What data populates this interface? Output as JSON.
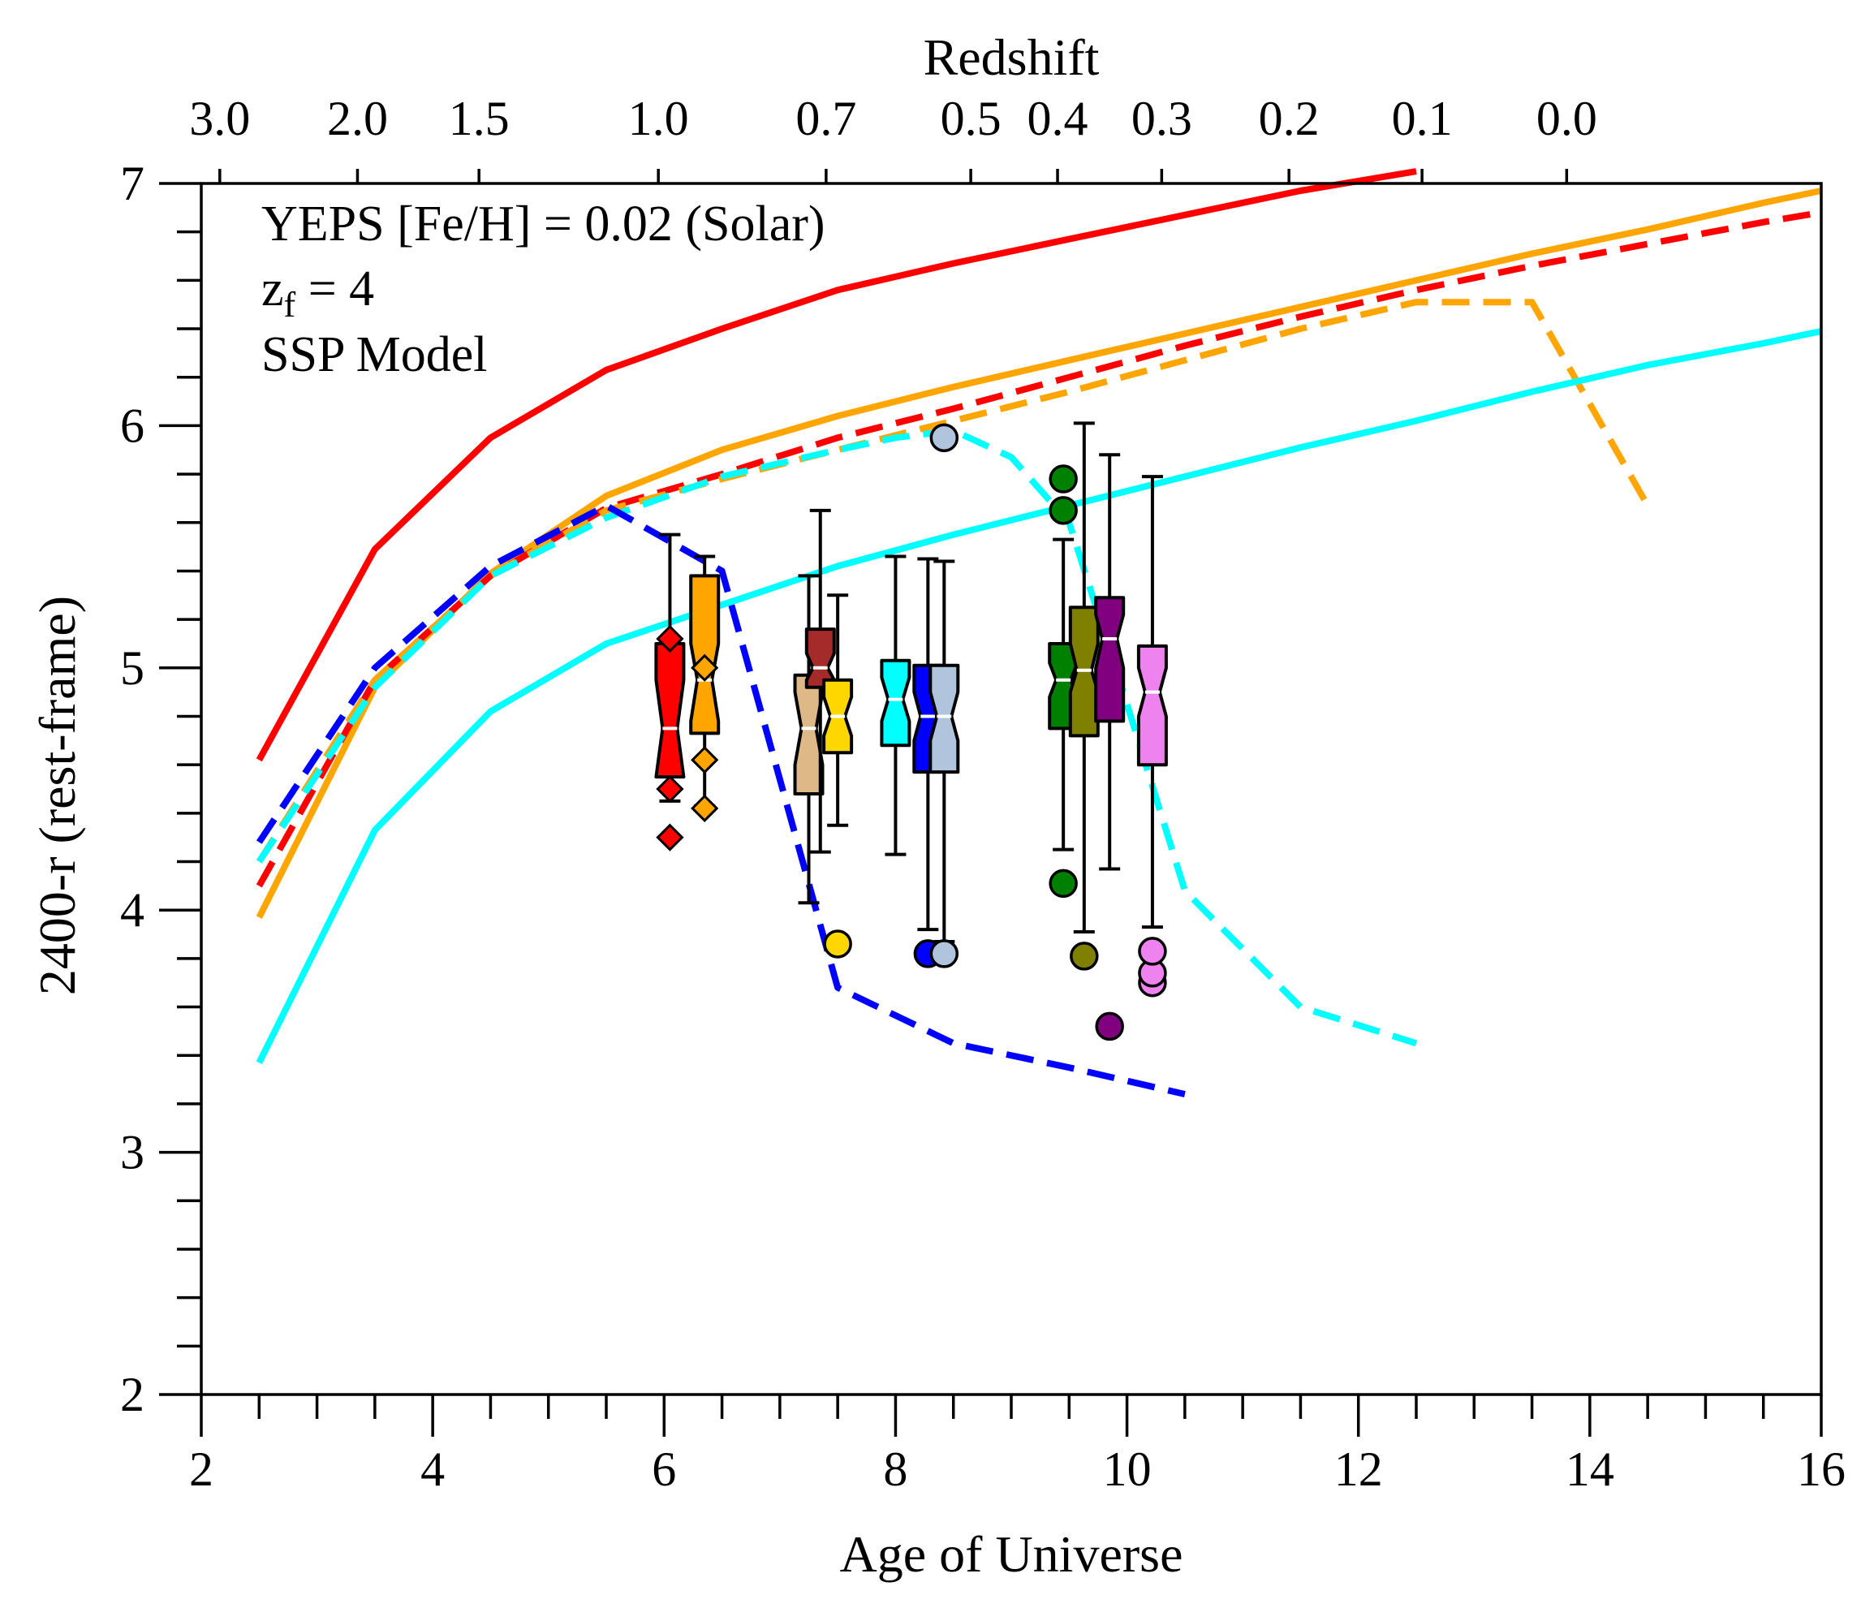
{
  "chart_data": {
    "type": "line",
    "title": "",
    "xlabel": "Age of Universe",
    "ylabel": "2400-r (rest-frame)",
    "top_axis_label": "Redshift",
    "xlim": [
      2,
      16
    ],
    "ylim": [
      2,
      7
    ],
    "x_ticks": [
      2,
      4,
      6,
      8,
      10,
      12,
      14,
      16
    ],
    "y_ticks": [
      2,
      3,
      4,
      5,
      6,
      7
    ],
    "top_ticks": [
      {
        "label": "3.0",
        "age": 2.16
      },
      {
        "label": "2.0",
        "age": 3.35
      },
      {
        "label": "1.5",
        "age": 4.4
      },
      {
        "label": "1.0",
        "age": 5.95
      },
      {
        "label": "0.7",
        "age": 7.4
      },
      {
        "label": "0.5",
        "age": 8.65
      },
      {
        "label": "0.4",
        "age": 9.4
      },
      {
        "label": "0.3",
        "age": 10.3
      },
      {
        "label": "0.2",
        "age": 11.4
      },
      {
        "label": "0.1",
        "age": 12.55
      },
      {
        "label": "0.0",
        "age": 13.8
      }
    ],
    "annotations": [
      "YEPS [Fe/H] = 0.02 (Solar)",
      "z",
      "f",
      " = 4",
      "SSP Model"
    ],
    "series": [
      {
        "name": "red solid",
        "color": "#ff0000",
        "dash": "solid",
        "x": [
          2.5,
          3.5,
          4.5,
          5.5,
          6.5,
          7.5,
          8.5,
          9.5,
          10.5,
          11.5,
          12.5
        ],
        "y": [
          4.62,
          5.49,
          5.95,
          6.23,
          6.4,
          6.56,
          6.67,
          6.77,
          6.87,
          6.97,
          7.05
        ]
      },
      {
        "name": "orange solid",
        "color": "#ffa500",
        "dash": "solid",
        "x": [
          2.5,
          3.5,
          4.5,
          5.5,
          6.5,
          7.5,
          8.5,
          9.5,
          10.5,
          11.5,
          12.5,
          13.5,
          14.5,
          15.5,
          16.0
        ],
        "y": [
          3.97,
          4.92,
          5.39,
          5.71,
          5.9,
          6.04,
          6.16,
          6.27,
          6.38,
          6.49,
          6.6,
          6.71,
          6.81,
          6.92,
          6.97
        ]
      },
      {
        "name": "red dashed",
        "color": "#ff0000",
        "dash": "dashed",
        "x": [
          2.5,
          3.5,
          4.5,
          5.5,
          6.5,
          7.5,
          8.5,
          9.5,
          10.5,
          11.5,
          12.5,
          13.5,
          14.5,
          15.5,
          16.0
        ],
        "y": [
          4.1,
          4.95,
          5.38,
          5.66,
          5.8,
          5.95,
          6.07,
          6.2,
          6.33,
          6.45,
          6.56,
          6.66,
          6.75,
          6.84,
          6.88
        ]
      },
      {
        "name": "orange dashed",
        "color": "#ffa500",
        "dash": "dashed",
        "x": [
          2.5,
          3.5,
          4.5,
          5.5,
          6.5,
          7.5,
          8.5,
          9.5,
          10.5,
          11.5,
          12.5,
          13.5,
          14.5
        ],
        "y": [
          4.2,
          4.95,
          5.38,
          5.65,
          5.78,
          5.9,
          6.02,
          6.14,
          6.27,
          6.4,
          6.51,
          6.51,
          5.67
        ]
      },
      {
        "name": "cyan dashed",
        "color": "#00ffff",
        "dash": "dashed",
        "x": [
          2.5,
          3.5,
          4.5,
          5.5,
          6.5,
          7.5,
          8.0,
          8.5,
          9.0,
          9.5,
          10.0,
          10.5,
          11.5,
          12.5
        ],
        "y": [
          4.2,
          4.92,
          5.38,
          5.62,
          5.79,
          5.9,
          5.95,
          5.98,
          5.87,
          5.6,
          4.85,
          4.08,
          3.6,
          3.45
        ]
      },
      {
        "name": "blue dashed",
        "color": "#0000ff",
        "dash": "dashed",
        "x": [
          2.5,
          3.5,
          4.5,
          5.5,
          6.5,
          7.5,
          8.5,
          9.5,
          10.5
        ],
        "y": [
          4.28,
          5.0,
          5.42,
          5.67,
          5.4,
          3.68,
          3.45,
          3.35,
          3.24
        ]
      },
      {
        "name": "cyan solid",
        "color": "#00ffff",
        "dash": "solid",
        "x": [
          2.5,
          3.5,
          4.5,
          5.5,
          6.5,
          7.5,
          8.5,
          9.5,
          10.5,
          11.5,
          12.5,
          13.5,
          14.5,
          15.5,
          16.0
        ],
        "y": [
          3.37,
          4.33,
          4.82,
          5.1,
          5.26,
          5.42,
          5.55,
          5.67,
          5.79,
          5.91,
          6.02,
          6.14,
          6.25,
          6.34,
          6.39
        ]
      }
    ],
    "boxes": [
      {
        "x": 6.05,
        "q1": 4.55,
        "med": 4.75,
        "q3": 5.1,
        "wlo": 4.45,
        "whi": 5.55,
        "color": "#ff0000",
        "notch_lo": 4.5,
        "notch_hi": 4.95,
        "outliers": [
          4.3,
          4.5,
          5.12
        ],
        "marker": "diamond"
      },
      {
        "x": 6.35,
        "q1": 4.73,
        "med": 4.95,
        "q3": 5.38,
        "wlo": 4.43,
        "whi": 5.46,
        "color": "#ffa500",
        "notch_lo": 4.78,
        "notch_hi": 5.1,
        "outliers": [
          4.42,
          4.62,
          5.0
        ],
        "marker": "diamond"
      },
      {
        "x": 7.25,
        "q1": 4.48,
        "med": 4.75,
        "q3": 4.97,
        "wlo": 4.03,
        "whi": 5.38,
        "color": "#deb887",
        "notch_lo": 4.6,
        "notch_hi": 4.9,
        "outliers": [],
        "marker": "circle"
      },
      {
        "x": 7.35,
        "q1": 4.92,
        "med": 5.0,
        "q3": 5.16,
        "wlo": 4.24,
        "whi": 5.65,
        "color": "#a52a2a",
        "notch_lo": 4.95,
        "notch_hi": 5.06,
        "outliers": [],
        "marker": "circle"
      },
      {
        "x": 7.5,
        "q1": 4.65,
        "med": 4.8,
        "q3": 4.95,
        "wlo": 4.35,
        "whi": 5.3,
        "color": "#ffd700",
        "notch_lo": 4.72,
        "notch_hi": 4.88,
        "outliers": [
          3.86
        ],
        "marker": "circle"
      },
      {
        "x": 8.0,
        "q1": 4.68,
        "med": 4.87,
        "q3": 5.03,
        "wlo": 4.23,
        "whi": 5.46,
        "color": "#00ffff",
        "notch_lo": 4.78,
        "notch_hi": 4.96,
        "outliers": [],
        "marker": "circle"
      },
      {
        "x": 8.28,
        "q1": 4.57,
        "med": 4.8,
        "q3": 5.01,
        "wlo": 3.92,
        "whi": 5.45,
        "color": "#0000ff",
        "notch_lo": 4.7,
        "notch_hi": 4.9,
        "outliers": [
          3.82
        ],
        "marker": "circle"
      },
      {
        "x": 8.42,
        "q1": 4.57,
        "med": 4.8,
        "q3": 5.01,
        "wlo": 3.87,
        "whi": 5.44,
        "color": "#b0c4de",
        "notch_lo": 4.7,
        "notch_hi": 4.9,
        "outliers": [
          3.82,
          5.95
        ],
        "marker": "circle"
      },
      {
        "x": 9.45,
        "q1": 4.75,
        "med": 4.95,
        "q3": 5.1,
        "wlo": 4.25,
        "whi": 5.53,
        "color": "#008000",
        "notch_lo": 4.88,
        "notch_hi": 5.02,
        "outliers": [
          4.11,
          5.65,
          5.78
        ],
        "marker": "circle"
      },
      {
        "x": 9.63,
        "q1": 4.72,
        "med": 4.99,
        "q3": 5.25,
        "wlo": 3.91,
        "whi": 6.01,
        "color": "#808000",
        "notch_lo": 4.9,
        "notch_hi": 5.1,
        "outliers": [
          3.81
        ],
        "marker": "circle"
      },
      {
        "x": 9.85,
        "q1": 4.78,
        "med": 5.12,
        "q3": 5.29,
        "wlo": 4.17,
        "whi": 5.88,
        "color": "#800080",
        "notch_lo": 5.0,
        "notch_hi": 5.22,
        "outliers": [
          3.52
        ],
        "marker": "circle"
      },
      {
        "x": 10.22,
        "q1": 4.6,
        "med": 4.9,
        "q3": 5.09,
        "wlo": 3.93,
        "whi": 5.79,
        "color": "#ee82ee",
        "notch_lo": 4.8,
        "notch_hi": 5.0,
        "outliers": [
          3.7,
          3.74,
          3.83
        ],
        "marker": "circle"
      }
    ]
  }
}
